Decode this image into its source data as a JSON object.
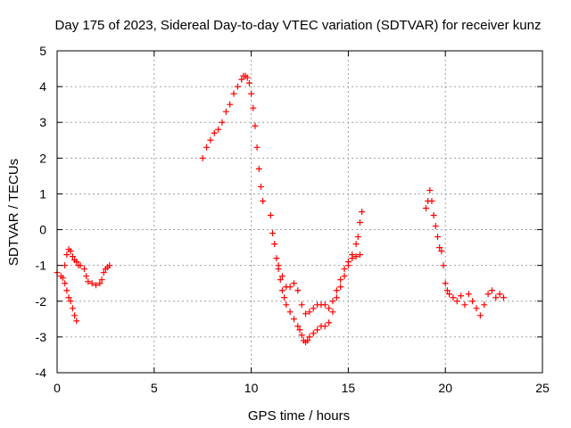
{
  "chart_data": {
    "type": "scatter",
    "title": "Day 175 of 2023, Sidereal Day-to-day VTEC variation (SDTVAR) for receiver kunz",
    "xlabel": "GPS time / hours",
    "ylabel": "SDTVAR / TECUs",
    "xlim": [
      0,
      25
    ],
    "ylim": [
      -4,
      5
    ],
    "xticks": [
      0,
      5,
      10,
      15,
      20,
      25
    ],
    "yticks": [
      -4,
      -3,
      -2,
      -1,
      0,
      1,
      2,
      3,
      4,
      5
    ],
    "grid": true,
    "marker": "plus",
    "color": "#ff0000",
    "series": [
      {
        "x": [
          0.0,
          0.2,
          0.4,
          0.5,
          0.6,
          0.7,
          0.8,
          0.9,
          1.0,
          1.1,
          1.2,
          1.4,
          1.5,
          1.6,
          1.8,
          2.0,
          2.2,
          2.3,
          2.4,
          2.5,
          2.6,
          2.7
        ],
        "y": [
          -1.2,
          -1.3,
          -1.0,
          -0.7,
          -0.55,
          -0.6,
          -0.75,
          -0.85,
          -0.9,
          -1.0,
          -1.0,
          -1.1,
          -1.3,
          -1.45,
          -1.5,
          -1.55,
          -1.5,
          -1.4,
          -1.2,
          -1.1,
          -1.05,
          -1.0
        ]
      },
      {
        "x": [
          0.3,
          0.4,
          0.5,
          0.6,
          0.7,
          0.8,
          0.9,
          1.0
        ],
        "y": [
          -1.35,
          -1.5,
          -1.7,
          -1.9,
          -2.0,
          -2.2,
          -2.4,
          -2.55
        ]
      },
      {
        "x": [
          7.5,
          7.7,
          7.9,
          8.1,
          8.3,
          8.5,
          8.7,
          8.9,
          9.1,
          9.3,
          9.5,
          9.6,
          9.7,
          9.8,
          9.9,
          10.0,
          10.1,
          10.2,
          10.3,
          10.4,
          10.5,
          10.6
        ],
        "y": [
          2.0,
          2.3,
          2.5,
          2.7,
          2.8,
          3.0,
          3.3,
          3.5,
          3.8,
          4.0,
          4.2,
          4.3,
          4.3,
          4.25,
          4.1,
          3.8,
          3.4,
          2.9,
          2.3,
          1.7,
          1.2,
          0.8
        ]
      },
      {
        "x": [
          11.0,
          11.1,
          11.2,
          11.3,
          11.4,
          11.5,
          11.6,
          11.7,
          11.8,
          12.0,
          12.2,
          12.4,
          12.5,
          12.6,
          12.7,
          12.8,
          12.9,
          13.0,
          13.2,
          13.4,
          13.6,
          13.8,
          14.0,
          14.2,
          14.4,
          14.6,
          14.8,
          15.0,
          15.2,
          15.4,
          15.5,
          15.6,
          15.7
        ],
        "y": [
          0.4,
          -0.1,
          -0.4,
          -0.8,
          -1.1,
          -1.4,
          -1.7,
          -1.9,
          -2.1,
          -2.3,
          -2.5,
          -2.7,
          -2.8,
          -2.95,
          -3.1,
          -3.15,
          -3.1,
          -3.0,
          -2.9,
          -2.8,
          -2.7,
          -2.7,
          -2.6,
          -2.3,
          -1.9,
          -1.6,
          -1.3,
          -1.0,
          -0.7,
          -0.4,
          -0.2,
          0.2,
          0.5
        ]
      },
      {
        "x": [
          11.4,
          11.6,
          11.8,
          12.0,
          12.2,
          12.4,
          12.6,
          12.8,
          13.0,
          13.2,
          13.4,
          13.6,
          13.8,
          14.0,
          14.2,
          14.4,
          14.6,
          14.8,
          15.0,
          15.2,
          15.4,
          15.6
        ],
        "y": [
          -1.0,
          -1.3,
          -1.6,
          -1.6,
          -1.5,
          -1.7,
          -2.1,
          -2.35,
          -2.3,
          -2.2,
          -2.1,
          -2.1,
          -2.1,
          -2.2,
          -2.0,
          -1.7,
          -1.4,
          -1.1,
          -0.9,
          -0.8,
          -0.75,
          -0.7
        ]
      },
      {
        "x": [
          19.0,
          19.1,
          19.2,
          19.3,
          19.4,
          19.5,
          19.6,
          19.7,
          19.8,
          19.9,
          20.0,
          20.1,
          20.2,
          20.4,
          20.6,
          20.8,
          21.0,
          21.2,
          21.4,
          21.6,
          21.8,
          22.0,
          22.2,
          22.4,
          22.6,
          22.8,
          23.0
        ],
        "y": [
          0.6,
          0.8,
          1.1,
          0.8,
          0.4,
          0.1,
          -0.2,
          -0.5,
          -0.6,
          -1.0,
          -1.5,
          -1.7,
          -1.8,
          -1.9,
          -2.0,
          -1.85,
          -2.1,
          -1.8,
          -2.0,
          -2.2,
          -2.4,
          -2.1,
          -1.8,
          -1.7,
          -1.9,
          -1.8,
          -1.9
        ]
      }
    ]
  }
}
